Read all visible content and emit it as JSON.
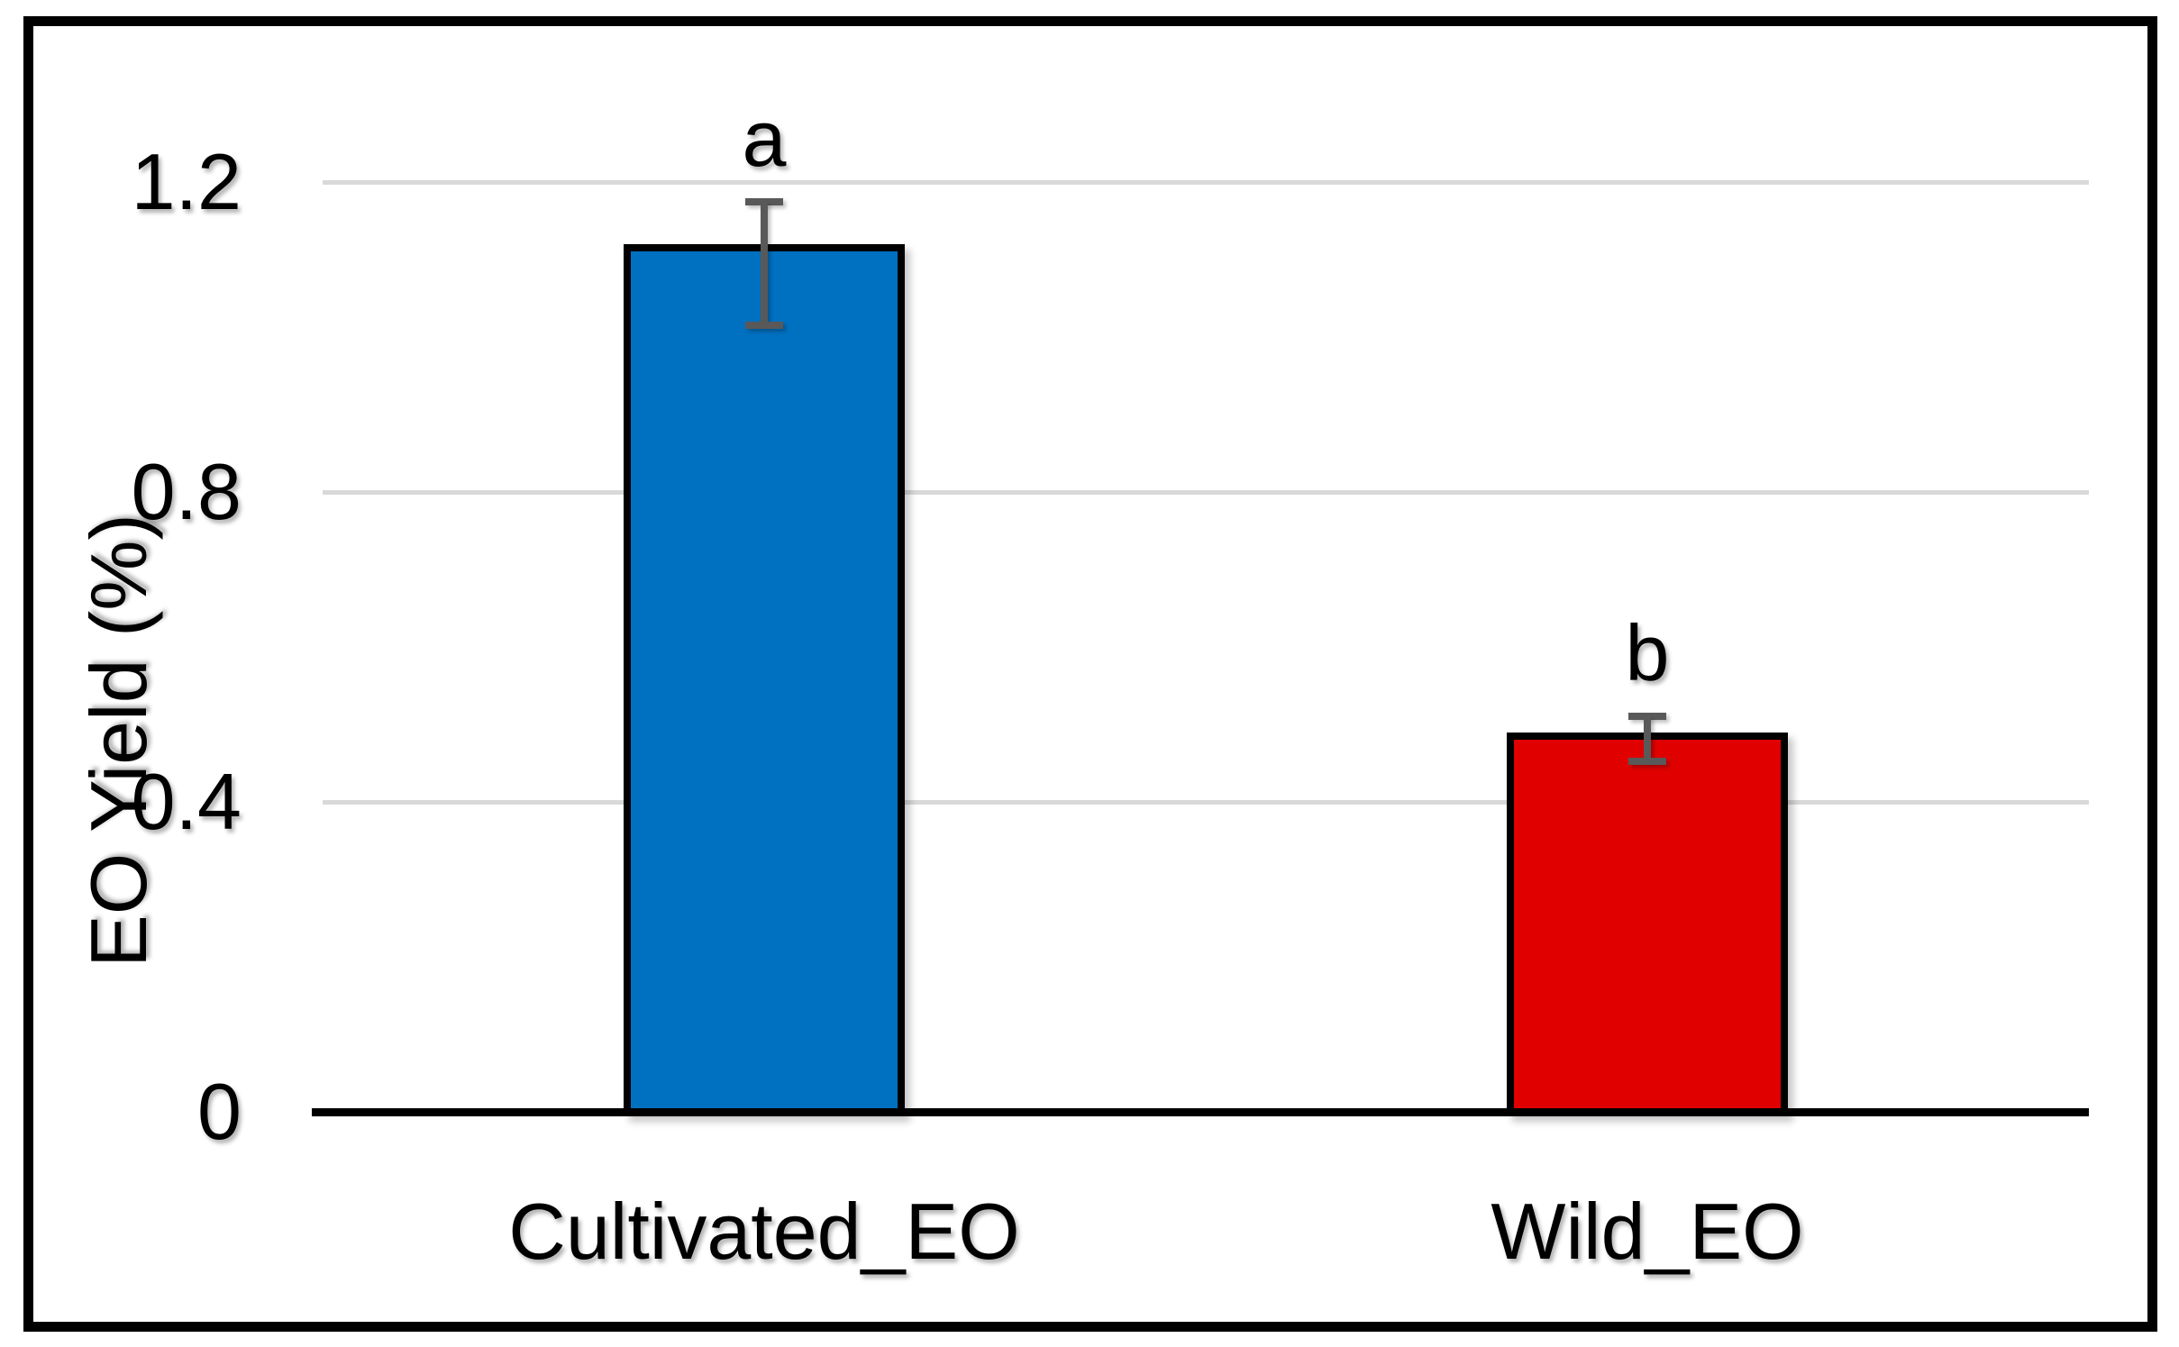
{
  "figure": {
    "background_color": "#FFFFFF",
    "border_color": "#000000"
  },
  "chart_data": {
    "type": "bar",
    "title": "",
    "categories": [
      "Cultivated_EO",
      "Wild_EO"
    ],
    "values": [
      1.12,
      0.49
    ],
    "error_bars": [
      {
        "upper": 1.175,
        "lower": 1.015
      },
      {
        "upper": 0.51,
        "lower": 0.452
      }
    ],
    "significance_labels": [
      "a",
      "b"
    ],
    "bar_colors": [
      "#0070C0",
      "#E00000"
    ],
    "ylabel": "EO Yield (%)",
    "xlabel": "",
    "yticks": [
      0,
      0.4,
      0.8,
      1.2
    ],
    "ytick_labels": [
      "0",
      "0.4",
      "0.8",
      "1.2"
    ],
    "ylim": [
      0,
      1.3
    ],
    "grid": true,
    "gridline_color": "#D9D9D9",
    "error_bar_color": "#595959",
    "axis_color": "#000000",
    "legend_position": "none"
  }
}
